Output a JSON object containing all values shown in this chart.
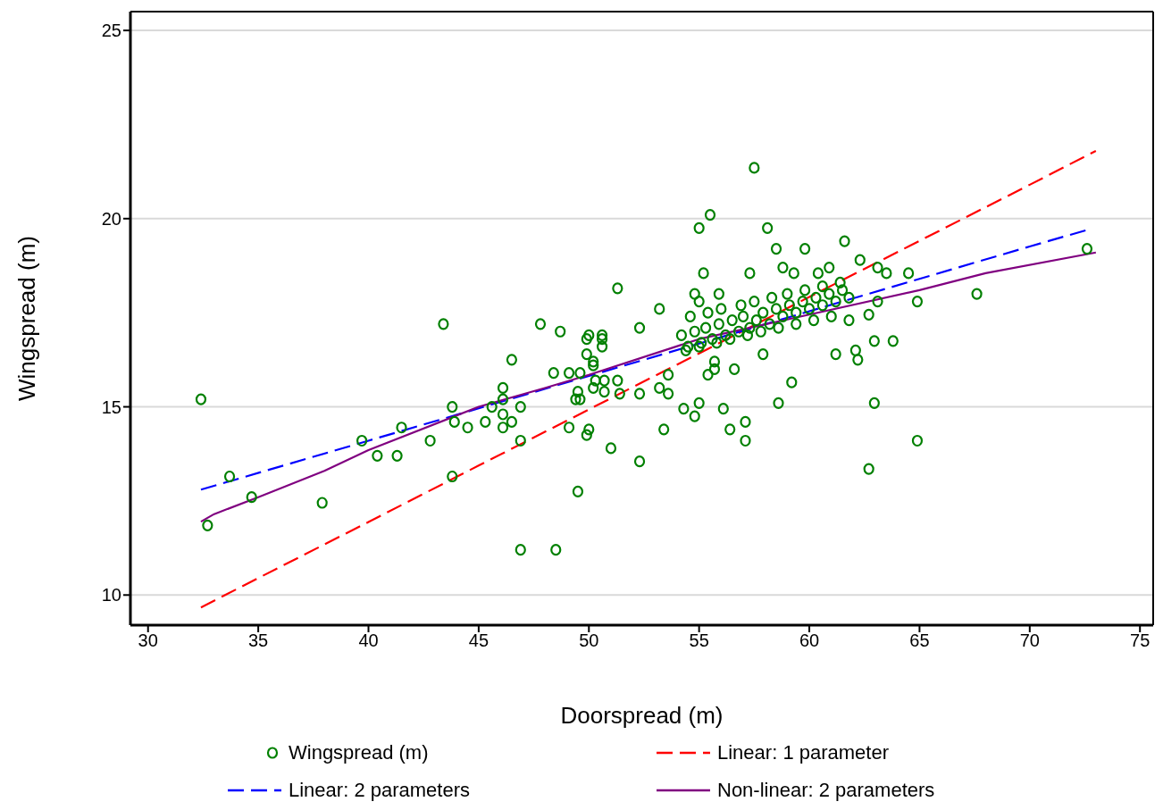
{
  "chart_data": {
    "type": "scatter",
    "xlabel": "Doorspread (m)",
    "ylabel": "Wingspread (m)",
    "xlim": [
      29.2,
      75.6
    ],
    "xticks": [
      30,
      35,
      40,
      45,
      50,
      55,
      60,
      65,
      70,
      75
    ],
    "ylim": [
      9.2,
      25.5
    ],
    "yticks": [
      10,
      15,
      20,
      25
    ],
    "grid": "y",
    "legend": "bottom",
    "marker": "circle",
    "series": [
      {
        "name": "Wingspread (m)",
        "color": "#008000",
        "x": [
          32.4,
          32.7,
          33.7,
          34.7,
          37.9,
          39.7,
          40.4,
          41.3,
          41.5,
          42.8,
          43.4,
          43.8,
          43.8,
          43.9,
          44.5,
          45.3,
          45.6,
          46.1,
          46.1,
          46.1,
          46.1,
          46.5,
          46.5,
          46.9,
          46.9,
          46.9,
          47.8,
          48.4,
          48.5,
          48.7,
          49.1,
          49.1,
          49.4,
          49.5,
          49.5,
          49.6,
          49.6,
          49.9,
          49.9,
          49.9,
          50.0,
          50.0,
          50.2,
          50.2,
          50.2,
          50.3,
          50.6,
          50.6,
          50.6,
          50.7,
          50.7,
          51.0,
          51.3,
          51.3,
          51.4,
          52.3,
          52.3,
          52.3,
          53.2,
          53.2,
          53.4,
          53.6,
          53.6,
          54.3,
          54.8,
          54.8,
          55.0,
          55.0,
          55.0,
          55.2,
          55.4,
          55.5,
          55.7,
          55.7,
          55.9,
          56.1,
          56.4,
          56.6,
          57.1,
          57.1,
          57.3,
          57.5,
          57.9,
          58.1,
          58.5,
          58.6,
          58.8,
          59.2,
          59.3,
          59.8,
          60.4,
          60.9,
          61.2,
          61.6,
          62.2,
          62.3,
          62.7,
          62.7,
          62.95,
          62.95,
          63.1,
          63.1,
          63.5,
          63.8,
          64.5,
          64.9,
          64.9,
          67.6,
          72.6,
          54.2,
          54.5,
          54.8,
          55.1,
          55.3,
          55.6,
          55.9,
          56.2,
          56.5,
          56.8,
          57.0,
          57.3,
          57.6,
          57.9,
          58.2,
          58.5,
          58.8,
          59.1,
          59.4,
          59.7,
          60.0,
          60.3,
          60.6,
          60.9,
          61.2,
          61.5,
          61.8,
          62.1,
          54.4,
          55.0,
          55.8,
          56.4,
          57.2,
          57.8,
          58.6,
          59.4,
          60.2,
          61.0,
          61.8,
          54.6,
          55.4,
          56.0,
          56.9,
          57.5,
          58.3,
          59.0,
          59.8,
          60.6,
          61.4
        ],
        "values": [
          15.2,
          11.85,
          13.15,
          12.6,
          12.45,
          14.1,
          13.7,
          13.7,
          14.45,
          14.1,
          17.2,
          15.0,
          13.15,
          14.6,
          14.45,
          14.6,
          15.0,
          15.5,
          15.2,
          14.8,
          14.45,
          16.25,
          14.6,
          15.0,
          14.1,
          11.2,
          17.2,
          15.9,
          11.2,
          17.0,
          15.9,
          14.45,
          15.2,
          15.4,
          12.75,
          15.9,
          15.2,
          16.8,
          16.4,
          14.25,
          16.9,
          14.4,
          16.1,
          15.5,
          16.2,
          15.7,
          16.8,
          16.6,
          16.9,
          15.7,
          15.4,
          13.9,
          15.7,
          18.15,
          15.35,
          17.1,
          15.35,
          13.55,
          17.6,
          15.5,
          14.4,
          15.35,
          15.85,
          14.95,
          18.0,
          14.75,
          19.75,
          17.8,
          15.1,
          18.55,
          15.85,
          20.1,
          16.0,
          16.2,
          18.0,
          14.95,
          14.4,
          16.0,
          14.6,
          14.1,
          18.55,
          21.35,
          16.4,
          19.75,
          19.2,
          15.1,
          18.7,
          15.65,
          18.55,
          19.2,
          18.55,
          18.7,
          16.4,
          19.4,
          16.25,
          18.9,
          17.45,
          13.35,
          16.75,
          15.1,
          18.7,
          17.8,
          18.55,
          16.75,
          18.55,
          17.8,
          14.1,
          18.0,
          19.2,
          16.9,
          16.6,
          17.0,
          16.7,
          17.1,
          16.8,
          17.2,
          16.9,
          17.3,
          17.0,
          17.4,
          17.1,
          17.3,
          17.5,
          17.2,
          17.6,
          17.4,
          17.7,
          17.5,
          17.8,
          17.6,
          17.9,
          17.7,
          18.0,
          17.8,
          18.1,
          17.9,
          16.5,
          16.5,
          16.6,
          16.7,
          16.8,
          16.9,
          17.0,
          17.1,
          17.2,
          17.3,
          17.4,
          17.3,
          17.4,
          17.5,
          17.6,
          17.7,
          17.8,
          17.9,
          18.0,
          18.1,
          18.2,
          18.3
        ]
      },
      {
        "name": "Linear: 1 parameter",
        "type": "line",
        "color": "#ff0000",
        "line_style": "dashed",
        "marker": "none",
        "x": [
          32.4,
          35,
          40,
          45,
          50,
          55,
          60,
          65,
          70,
          73
        ],
        "values": [
          9.67,
          10.45,
          11.94,
          13.44,
          14.93,
          16.42,
          17.92,
          19.41,
          20.9,
          21.8
        ]
      },
      {
        "name": "Linear: 2 parameters",
        "type": "line",
        "color": "#0000ff",
        "line_style": "dashed",
        "marker": "none",
        "x": [
          32.4,
          40,
          45,
          50,
          55,
          60,
          65,
          70,
          72.6
        ],
        "values": [
          12.8,
          14.1,
          14.96,
          15.82,
          16.68,
          17.54,
          18.4,
          19.26,
          19.7
        ]
      },
      {
        "name": "Non-linear: 2 parameters",
        "type": "line",
        "color": "#800080",
        "line_style": "solid",
        "marker": "none",
        "x": [
          32.4,
          33,
          35,
          38,
          40,
          45,
          48,
          50,
          55,
          60,
          65,
          68,
          73
        ],
        "values": [
          11.95,
          12.15,
          12.6,
          13.3,
          13.85,
          15.0,
          15.5,
          15.85,
          16.8,
          17.45,
          18.1,
          18.55,
          19.1
        ]
      }
    ]
  }
}
